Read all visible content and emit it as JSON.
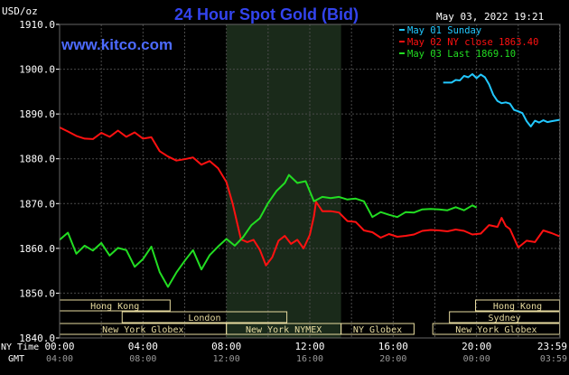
{
  "chart_data": {
    "type": "line",
    "title": "24 Hour Spot Gold (Bid)",
    "unit_label": "USD/oz",
    "timestamp": "May 03, 2022 19:21",
    "watermark": "www.kitco.com",
    "ylim": [
      1840,
      1910
    ],
    "y_ticks": [
      "1910.0",
      "1900.0",
      "1890.0",
      "1880.0",
      "1870.0",
      "1860.0",
      "1850.0",
      "1840.0"
    ],
    "x_ticks_ny": [
      "00:00",
      "04:00",
      "08:00",
      "12:00",
      "16:00",
      "20:00",
      "23:59"
    ],
    "x_ticks_gmt": [
      "04:00",
      "08:00",
      "12:00",
      "16:00",
      "20:00",
      "00:00",
      "03:59"
    ],
    "x_axis_labels": {
      "ny": "NY Time",
      "gmt": "GMT"
    },
    "x_range_hours": [
      0,
      24
    ],
    "highlight_hours": [
      8.0,
      13.5
    ],
    "grid": true,
    "legend_position": "top-right",
    "colors": {
      "background": "#000000",
      "grid": "#4a4a4a",
      "axis_text": "#ffffff",
      "title": "#3344ee",
      "watermark": "#4d6bff",
      "session_bar": "#e8dca0",
      "highlight": "#1a2a1a"
    },
    "series": [
      {
        "name": "May 01 Sunday",
        "color": "#22c8ff",
        "points": [
          [
            18.4,
            1897
          ],
          [
            18.8,
            1897
          ],
          [
            19.0,
            1897.6
          ],
          [
            19.2,
            1897.5
          ],
          [
            19.4,
            1898.5
          ],
          [
            19.6,
            1898.2
          ],
          [
            19.8,
            1898.9
          ],
          [
            20.0,
            1898
          ],
          [
            20.2,
            1898.8
          ],
          [
            20.4,
            1898.2
          ],
          [
            20.6,
            1896.6
          ],
          [
            20.8,
            1894.3
          ],
          [
            21.0,
            1892.9
          ],
          [
            21.2,
            1892.4
          ],
          [
            21.4,
            1892.6
          ],
          [
            21.6,
            1892.3
          ],
          [
            21.8,
            1890.9
          ],
          [
            22.0,
            1890.6
          ],
          [
            22.2,
            1890.2
          ],
          [
            22.4,
            1888.4
          ],
          [
            22.6,
            1887.2
          ],
          [
            22.8,
            1888.5
          ],
          [
            23.0,
            1888.1
          ],
          [
            23.2,
            1888.6
          ],
          [
            23.4,
            1888.2
          ],
          [
            23.6,
            1888.4
          ],
          [
            23.98,
            1888.7
          ]
        ]
      },
      {
        "name": "May 02 NY close 1863.40",
        "color": "#ff1111",
        "points": [
          [
            0,
            1887
          ],
          [
            0.4,
            1886.1
          ],
          [
            0.8,
            1885.1
          ],
          [
            1.2,
            1884.5
          ],
          [
            1.6,
            1884.4
          ],
          [
            2.0,
            1885.8
          ],
          [
            2.4,
            1884.9
          ],
          [
            2.8,
            1886.3
          ],
          [
            3.2,
            1884.9
          ],
          [
            3.6,
            1885.9
          ],
          [
            4.0,
            1884.5
          ],
          [
            4.4,
            1884.8
          ],
          [
            4.8,
            1881.7
          ],
          [
            5.2,
            1880.5
          ],
          [
            5.6,
            1879.6
          ],
          [
            6.0,
            1879.9
          ],
          [
            6.4,
            1880.3
          ],
          [
            6.8,
            1878.7
          ],
          [
            7.2,
            1879.5
          ],
          [
            7.6,
            1877.9
          ],
          [
            8.0,
            1874.8
          ],
          [
            8.3,
            1870
          ],
          [
            8.5,
            1866
          ],
          [
            8.7,
            1862
          ],
          [
            9.0,
            1861.4
          ],
          [
            9.3,
            1861.9
          ],
          [
            9.6,
            1859.7
          ],
          [
            9.9,
            1856.2
          ],
          [
            10.2,
            1858
          ],
          [
            10.5,
            1861.7
          ],
          [
            10.8,
            1862.8
          ],
          [
            11.1,
            1861
          ],
          [
            11.4,
            1861.9
          ],
          [
            11.7,
            1860
          ],
          [
            12.0,
            1863
          ],
          [
            12.2,
            1867.2
          ],
          [
            12.3,
            1870.4
          ],
          [
            12.6,
            1868.3
          ],
          [
            13.0,
            1868.3
          ],
          [
            13.4,
            1868
          ],
          [
            13.8,
            1866.1
          ],
          [
            14.2,
            1865.9
          ],
          [
            14.6,
            1864
          ],
          [
            15.0,
            1863.6
          ],
          [
            15.4,
            1862.4
          ],
          [
            15.8,
            1863.2
          ],
          [
            16.2,
            1862.6
          ],
          [
            16.6,
            1862.8
          ],
          [
            17.0,
            1863.1
          ],
          [
            17.4,
            1863.9
          ],
          [
            17.8,
            1864.1
          ],
          [
            18.2,
            1864
          ],
          [
            18.6,
            1863.8
          ],
          [
            19.0,
            1864.2
          ],
          [
            19.4,
            1863.9
          ],
          [
            19.8,
            1863.1
          ],
          [
            20.2,
            1863.3
          ],
          [
            20.6,
            1865.2
          ],
          [
            21.0,
            1864.8
          ],
          [
            21.2,
            1866.8
          ],
          [
            21.4,
            1865
          ],
          [
            21.6,
            1864.3
          ],
          [
            22.0,
            1860.2
          ],
          [
            22.4,
            1861.7
          ],
          [
            22.8,
            1861.4
          ],
          [
            23.2,
            1864
          ],
          [
            23.6,
            1863.4
          ],
          [
            23.98,
            1862.7
          ]
        ]
      },
      {
        "name": "May 03 Last 1869.10",
        "color": "#22dd22",
        "points": [
          [
            0,
            1861.9
          ],
          [
            0.4,
            1863.5
          ],
          [
            0.8,
            1858.8
          ],
          [
            1.2,
            1860.6
          ],
          [
            1.6,
            1859.5
          ],
          [
            2.0,
            1861.2
          ],
          [
            2.4,
            1858.4
          ],
          [
            2.8,
            1860.1
          ],
          [
            3.2,
            1859.6
          ],
          [
            3.6,
            1855.9
          ],
          [
            4.0,
            1857.6
          ],
          [
            4.4,
            1860.4
          ],
          [
            4.8,
            1854.7
          ],
          [
            5.2,
            1851.4
          ],
          [
            5.6,
            1854.6
          ],
          [
            6.0,
            1857.2
          ],
          [
            6.4,
            1859.6
          ],
          [
            6.8,
            1855.3
          ],
          [
            7.2,
            1858.5
          ],
          [
            7.6,
            1860.4
          ],
          [
            8.0,
            1862.1
          ],
          [
            8.4,
            1860.6
          ],
          [
            8.8,
            1862.5
          ],
          [
            9.2,
            1865.2
          ],
          [
            9.6,
            1866.7
          ],
          [
            10.0,
            1870.1
          ],
          [
            10.4,
            1872.8
          ],
          [
            10.8,
            1874.6
          ],
          [
            11.0,
            1876.4
          ],
          [
            11.4,
            1874.6
          ],
          [
            11.8,
            1875
          ],
          [
            12.2,
            1870.5
          ],
          [
            12.6,
            1871.5
          ],
          [
            13.0,
            1871.2
          ],
          [
            13.4,
            1871.5
          ],
          [
            13.8,
            1870.9
          ],
          [
            14.2,
            1871.1
          ],
          [
            14.6,
            1870.5
          ],
          [
            15.0,
            1867
          ],
          [
            15.4,
            1868.1
          ],
          [
            15.8,
            1867.5
          ],
          [
            16.2,
            1867
          ],
          [
            16.6,
            1868.1
          ],
          [
            17.0,
            1868
          ],
          [
            17.4,
            1868.7
          ],
          [
            17.8,
            1868.8
          ],
          [
            18.2,
            1868.7
          ],
          [
            18.6,
            1868.5
          ],
          [
            19.0,
            1869.2
          ],
          [
            19.4,
            1868.5
          ],
          [
            19.8,
            1869.6
          ],
          [
            20.0,
            1869.1
          ]
        ]
      }
    ],
    "session_rows": [
      [
        {
          "label": "Hong Kong",
          "start": 0,
          "end": 5.3
        },
        {
          "label": "Hong Kong",
          "start": 19.95,
          "end": 23.98
        }
      ],
      [
        {
          "label": "London",
          "start": 3.0,
          "end": 10.9
        },
        {
          "label": "Sydney",
          "start": 18.7,
          "end": 23.98
        }
      ],
      [
        {
          "label": "New York Globex",
          "start": 0,
          "end": 8.0
        },
        {
          "label": "New York NYMEX",
          "start": 8.0,
          "end": 13.5
        },
        {
          "label": "NY Globex",
          "start": 13.5,
          "end": 17.0
        },
        {
          "label": "New York Globex",
          "start": 17.9,
          "end": 23.98
        }
      ]
    ]
  }
}
